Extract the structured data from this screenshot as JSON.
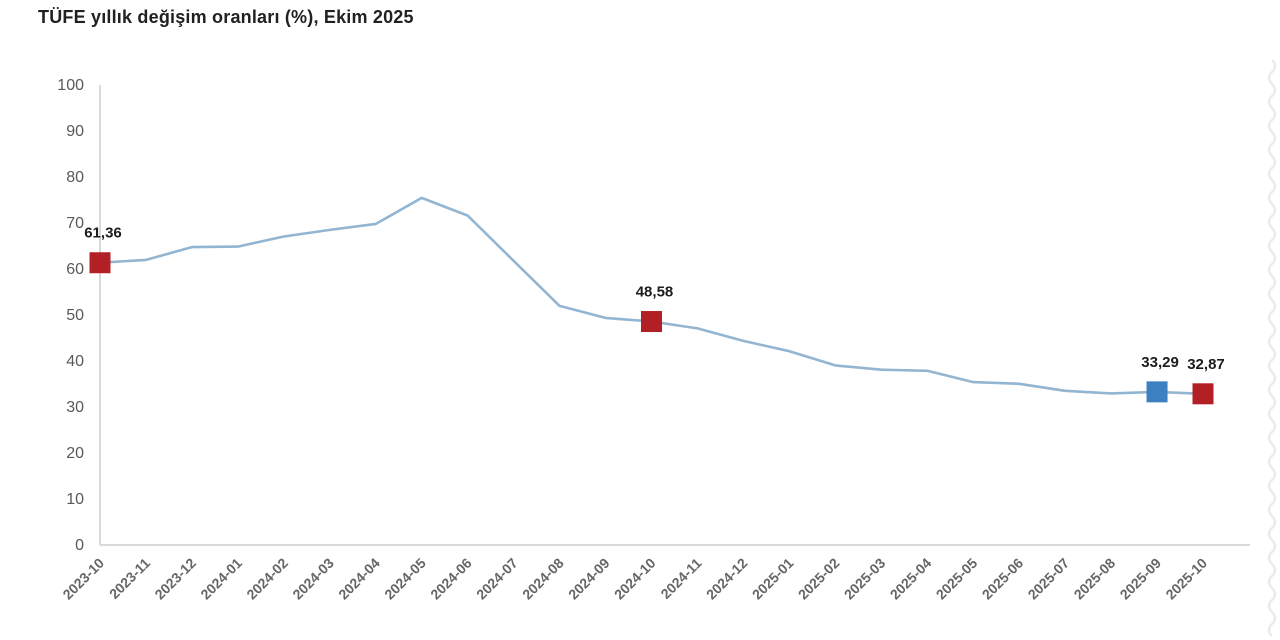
{
  "title": "TÜFE yıllık değişim oranları (%), Ekim 2025",
  "chart_data": {
    "type": "line",
    "title": "TÜFE yıllık değişim oranları (%), Ekim 2025",
    "xlabel": "",
    "ylabel": "",
    "ylim": [
      0,
      100
    ],
    "y_ticks": [
      0,
      10,
      20,
      30,
      40,
      50,
      60,
      70,
      80,
      90,
      100
    ],
    "grid": false,
    "legend": null,
    "categories": [
      "2023-10",
      "2023-11",
      "2023-12",
      "2024-01",
      "2024-02",
      "2024-03",
      "2024-04",
      "2024-05",
      "2024-06",
      "2024-07",
      "2024-08",
      "2024-09",
      "2024-10",
      "2024-11",
      "2024-12",
      "2025-01",
      "2025-02",
      "2025-03",
      "2025-04",
      "2025-05",
      "2025-06",
      "2025-07",
      "2025-08",
      "2025-09",
      "2025-10"
    ],
    "series": [
      {
        "name": "TÜFE yıllık değişim oranı (%)",
        "values": [
          61.36,
          61.98,
          64.77,
          64.86,
          67.07,
          68.5,
          69.8,
          75.45,
          71.6,
          61.78,
          51.97,
          49.38,
          48.58,
          47.09,
          44.38,
          42.12,
          39.05,
          38.1,
          37.86,
          35.41,
          35.05,
          33.52,
          32.95,
          33.29,
          32.87
        ]
      }
    ],
    "highlighted_points": [
      {
        "category": "2023-10",
        "value": 61.36,
        "label": "61,36",
        "color": "#b22025"
      },
      {
        "category": "2024-10",
        "value": 48.58,
        "label": "48,58",
        "color": "#b22025"
      },
      {
        "category": "2025-09",
        "value": 33.29,
        "label": "33,29",
        "color": "#3c80c2"
      },
      {
        "category": "2025-10",
        "value": 32.87,
        "label": "32,87",
        "color": "#b22025"
      }
    ],
    "colors": {
      "line": "#92b5d2",
      "axis": "#d9d9d9",
      "marker_red": "#b22025",
      "marker_blue": "#3c80c2"
    }
  }
}
